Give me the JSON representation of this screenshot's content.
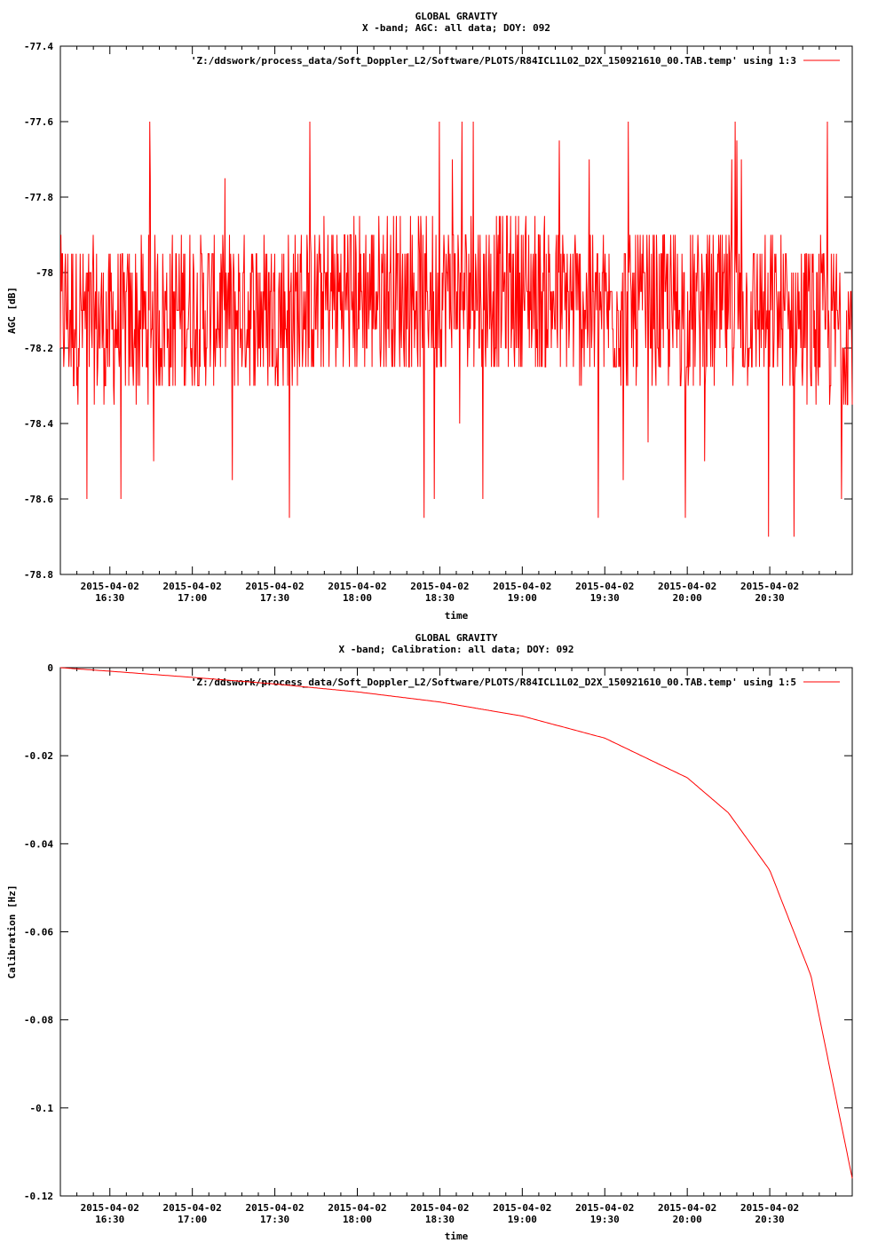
{
  "chart_data": [
    {
      "type": "line",
      "title": "GLOBAL GRAVITY",
      "subtitle": "X -band; AGC: all data; DOY: 092",
      "xlabel": "time",
      "ylabel": "AGC [dB]",
      "ylim": [
        -78.8,
        -77.4
      ],
      "y_ticks": [
        -77.4,
        -77.6,
        -77.8,
        -78,
        -78.2,
        -78.4,
        -78.6,
        -78.8
      ],
      "y_tick_labels": [
        "-77.4",
        "-77.6",
        "-77.8",
        "-78",
        "-78.2",
        "-78.4",
        "-78.6",
        "-78.8"
      ],
      "xlim": [
        "2015-04-02 16:12",
        "2015-04-02 21:00"
      ],
      "x_ticks": [
        "2015-04-02 16:30",
        "2015-04-02 17:00",
        "2015-04-02 17:30",
        "2015-04-02 18:00",
        "2015-04-02 18:30",
        "2015-04-02 19:00",
        "2015-04-02 19:30",
        "2015-04-02 20:00",
        "2015-04-02 20:30"
      ],
      "x_tick_labels": [
        [
          "2015-04-02",
          "16:30"
        ],
        [
          "2015-04-02",
          "17:00"
        ],
        [
          "2015-04-02",
          "17:30"
        ],
        [
          "2015-04-02",
          "18:00"
        ],
        [
          "2015-04-02",
          "18:30"
        ],
        [
          "2015-04-02",
          "19:00"
        ],
        [
          "2015-04-02",
          "19:30"
        ],
        [
          "2015-04-02",
          "20:00"
        ],
        [
          "2015-04-02",
          "20:30"
        ]
      ],
      "grid": false,
      "legend_position": "top-right",
      "series": [
        {
          "name": "'Z:/ddswork/process_data/Soft_Doppler_L2/Software/PLOTS/R84ICL1L02_D2X_150921610_00.TAB.temp' using 1:3",
          "color": "#ff0000",
          "style": "noisy",
          "x": [
            "2015-04-02 16:12",
            "2015-04-02 16:30",
            "2015-04-02 17:00",
            "2015-04-02 17:30",
            "2015-04-02 18:00",
            "2015-04-02 18:30",
            "2015-04-02 19:00",
            "2015-04-02 19:30",
            "2015-04-02 20:00",
            "2015-04-02 20:30",
            "2015-04-02 21:00"
          ],
          "baseline": [
            -78.1,
            -78.15,
            -78.1,
            -78.1,
            -78.05,
            -78.05,
            -78.05,
            -78.1,
            -78.1,
            -78.1,
            -78.15
          ],
          "min": -78.7,
          "max": -77.6
        }
      ]
    },
    {
      "type": "line",
      "title": "GLOBAL GRAVITY",
      "subtitle": "X -band; Calibration: all data; DOY: 092",
      "xlabel": "time",
      "ylabel": "Calibration [Hz]",
      "ylim": [
        -0.12,
        0
      ],
      "y_ticks": [
        0,
        -0.02,
        -0.04,
        -0.06,
        -0.08,
        -0.1,
        -0.12
      ],
      "y_tick_labels": [
        "0",
        "-0.02",
        "-0.04",
        "-0.06",
        "-0.08",
        "-0.1",
        "-0.12"
      ],
      "xlim": [
        "2015-04-02 16:12",
        "2015-04-02 21:00"
      ],
      "x_ticks": [
        "2015-04-02 16:30",
        "2015-04-02 17:00",
        "2015-04-02 17:30",
        "2015-04-02 18:00",
        "2015-04-02 18:30",
        "2015-04-02 19:00",
        "2015-04-02 19:30",
        "2015-04-02 20:00",
        "2015-04-02 20:30"
      ],
      "x_tick_labels": [
        [
          "2015-04-02",
          "16:30"
        ],
        [
          "2015-04-02",
          "17:00"
        ],
        [
          "2015-04-02",
          "17:30"
        ],
        [
          "2015-04-02",
          "18:00"
        ],
        [
          "2015-04-02",
          "18:30"
        ],
        [
          "2015-04-02",
          "19:00"
        ],
        [
          "2015-04-02",
          "19:30"
        ],
        [
          "2015-04-02",
          "20:00"
        ],
        [
          "2015-04-02",
          "20:30"
        ]
      ],
      "grid": false,
      "legend_position": "top-right",
      "series": [
        {
          "name": "'Z:/ddswork/process_data/Soft_Doppler_L2/Software/PLOTS/R84ICL1L02_D2X_150921610_00.TAB.temp' using 1:5",
          "color": "#ff0000",
          "style": "smooth",
          "x": [
            "2015-04-02 16:12",
            "2015-04-02 16:30",
            "2015-04-02 17:00",
            "2015-04-02 17:30",
            "2015-04-02 18:00",
            "2015-04-02 18:30",
            "2015-04-02 19:00",
            "2015-04-02 19:30",
            "2015-04-02 20:00",
            "2015-04-02 20:15",
            "2015-04-02 20:30",
            "2015-04-02 20:45",
            "2015-04-02 21:00"
          ],
          "values": [
            0,
            -0.0008,
            -0.0022,
            -0.0037,
            -0.0055,
            -0.0078,
            -0.011,
            -0.016,
            -0.025,
            -0.033,
            -0.046,
            -0.07,
            -0.116
          ]
        }
      ]
    }
  ]
}
